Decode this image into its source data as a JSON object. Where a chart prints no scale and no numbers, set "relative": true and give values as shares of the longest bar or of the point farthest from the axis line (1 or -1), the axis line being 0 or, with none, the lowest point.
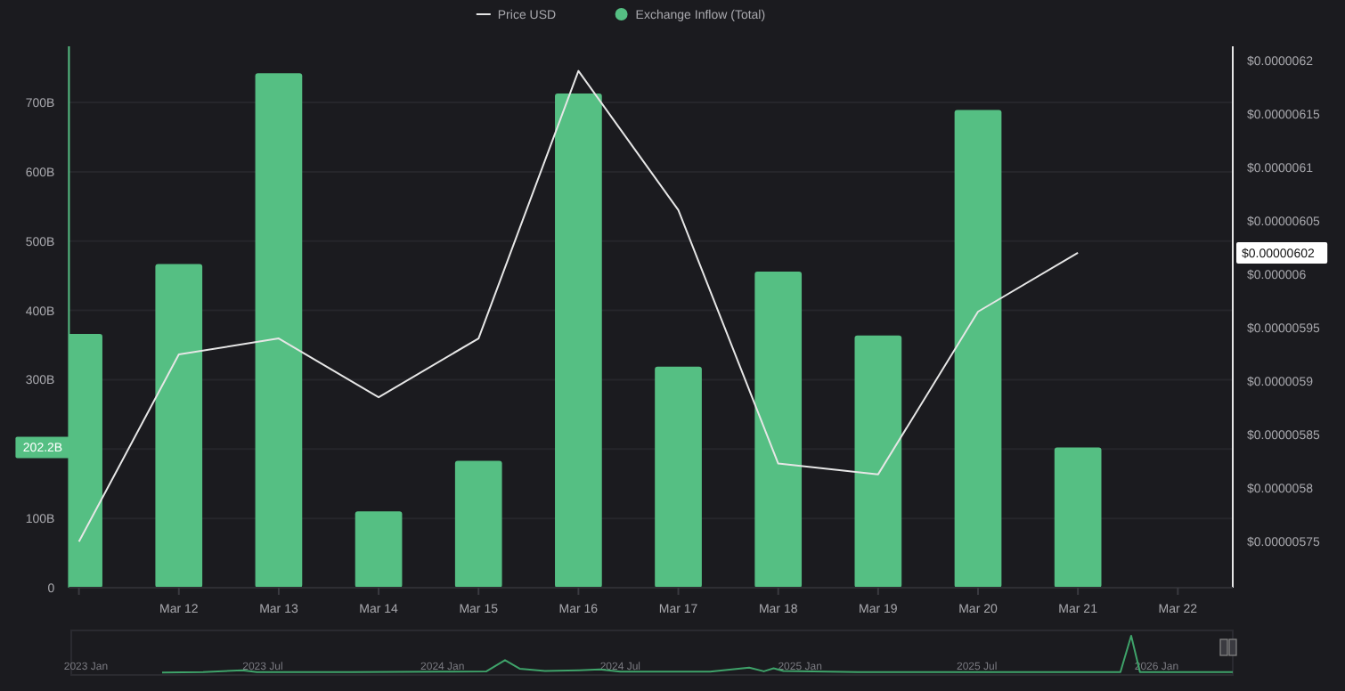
{
  "chart_data": [
    {
      "type": "bar",
      "categories": [
        null,
        "Mar 12",
        "Mar 13",
        "Mar 14",
        "Mar 15",
        "Mar 16",
        "Mar 17",
        "Mar 18",
        "Mar 19",
        "Mar 20",
        "Mar 21",
        "Mar 22"
      ],
      "series": [
        {
          "name": "Price USD",
          "type": "line",
          "axis": "y2",
          "color": "#e6e6e6",
          "values": [
            5.75e-06,
            5.925e-06,
            5.94e-06,
            5.885e-06,
            5.94e-06,
            6.19e-06,
            6.06e-06,
            5.823e-06,
            5.813e-06,
            5.965e-06,
            6.02e-06,
            null
          ]
        },
        {
          "name": "Exchange Inflow (Total)",
          "color": "#55bf83",
          "values": [
            366,
            467,
            742,
            110,
            183,
            713,
            319,
            456,
            364,
            689,
            202.2,
            null
          ]
        }
      ],
      "ylim": [
        0,
        781
      ],
      "yticks": [
        0,
        {
          "value": 100,
          "label": "100B"
        },
        {
          "value": 200,
          "label": null
        },
        {
          "value": 300,
          "label": "300B"
        },
        {
          "value": 400,
          "label": "400B"
        },
        {
          "value": 500,
          "label": "500B"
        },
        {
          "value": 600,
          "label": "600B"
        },
        {
          "value": 700,
          "label": "700B"
        }
      ],
      "y2lim": [
        5.707e-06,
        6.213e-06
      ],
      "y2ticks": [
        {
          "value": 5.75e-06,
          "label": "$0.00000575"
        },
        {
          "value": 5.8e-06,
          "label": "$0.0000058"
        },
        {
          "value": 5.85e-06,
          "label": "$0.00000585"
        },
        {
          "value": 5.9e-06,
          "label": "$0.0000059"
        },
        {
          "value": 5.95e-06,
          "label": "$0.00000595"
        },
        {
          "value": 6e-06,
          "label": "$0.000006"
        },
        {
          "value": 6.05e-06,
          "label": "$0.00000605"
        },
        {
          "value": 6.1e-06,
          "label": "$0.0000061"
        },
        {
          "value": 6.15e-06,
          "label": "$0.00000615"
        },
        {
          "value": 6.2e-06,
          "label": "$0.0000062"
        }
      ],
      "grid": "y",
      "legend": "top",
      "annotations": [
        "202.2B",
        "$0.00000602"
      ]
    },
    {
      "type": "line",
      "relative": true,
      "tick_labels": "x",
      "x": [
        "2023-03-20",
        "2023-05-01",
        "2023-06-10",
        "2023-06-25",
        "2023-10-01",
        "2024-01-01",
        "2024-02-15",
        "2024-03-05",
        "2024-03-20",
        "2024-04-15",
        "2024-05-20",
        "2024-06-10",
        "2024-07-01",
        "2024-10-01",
        "2024-11-10",
        "2024-11-25",
        "2024-12-05",
        "2024-12-15",
        "2025-03-01",
        "2025-07-01",
        "2025-11-25",
        "2025-12-06",
        "2025-12-15",
        "2026-03-20"
      ],
      "series": [
        {
          "color": "#3fa36a",
          "values": [
            0.02,
            0.03,
            0.08,
            0.03,
            0.03,
            0.04,
            0.05,
            0.35,
            0.12,
            0.06,
            0.08,
            0.1,
            0.04,
            0.04,
            0.15,
            0.05,
            0.13,
            0.06,
            0.03,
            0.03,
            0.03,
            1,
            0.03,
            0.03
          ]
        }
      ],
      "xlim": [
        "2022-12-17",
        "2026-03-20"
      ],
      "xticks": [
        {
          "value": "2023-01-01",
          "label": "2023 Jan"
        },
        {
          "value": "2023-07-01",
          "label": "2023 Jul"
        },
        {
          "value": "2024-01-01",
          "label": "2024 Jan"
        },
        {
          "value": "2024-07-01",
          "label": "2024 Jul"
        },
        {
          "value": "2025-01-01",
          "label": "2025 Jan"
        },
        {
          "value": "2025-07-01",
          "label": "2025 Jul"
        },
        {
          "value": "2026-01-01",
          "label": "2026 Jan"
        }
      ]
    }
  ]
}
